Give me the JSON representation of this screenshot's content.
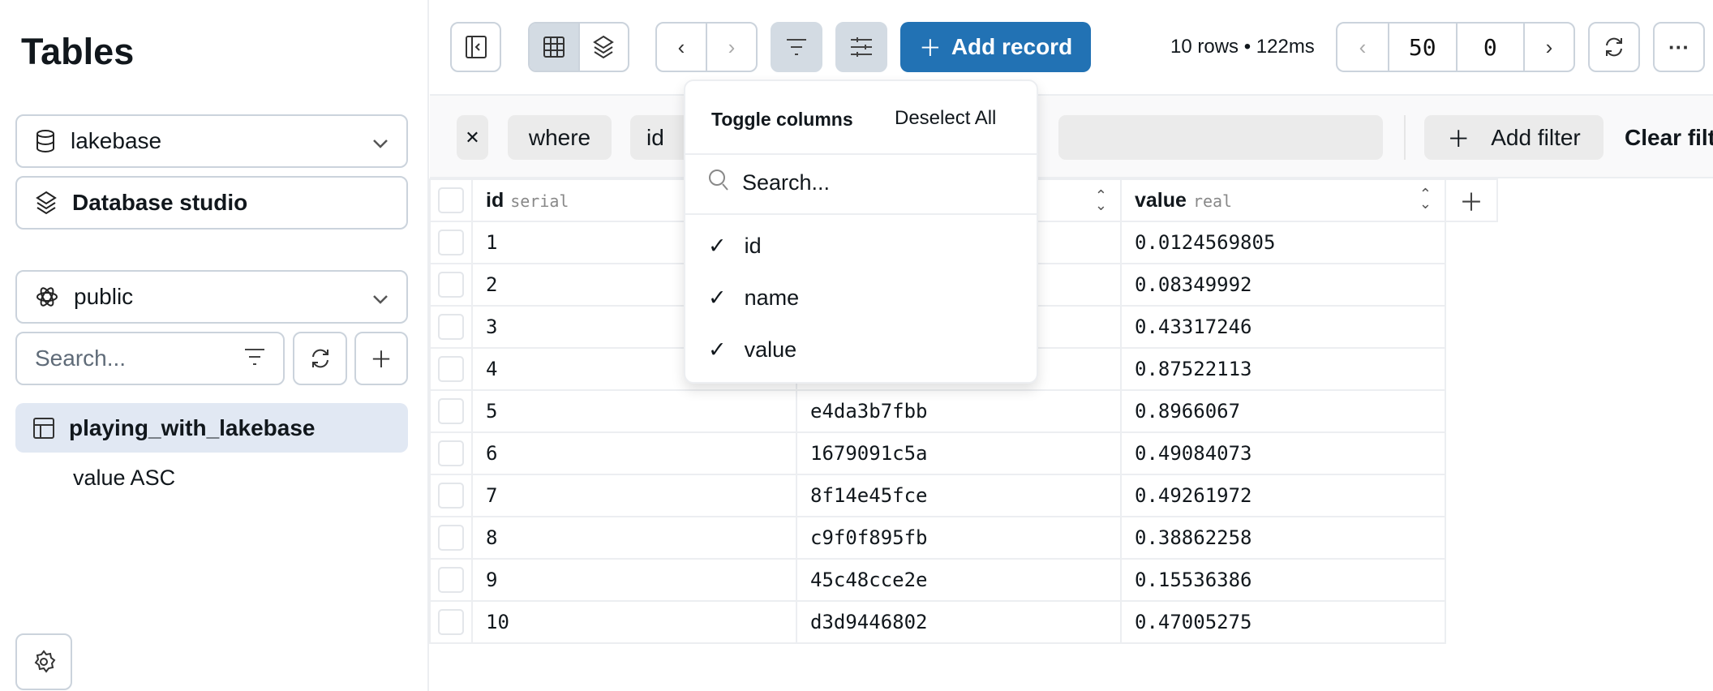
{
  "sidebar": {
    "title": "Tables",
    "database": "lakebase",
    "studio": "Database studio",
    "schema": "public",
    "search_placeholder": "Search...",
    "tables": [
      {
        "label": "playing_with_lakebase",
        "sub": "value ASC"
      }
    ]
  },
  "toolbar": {
    "add_record": "Add record",
    "status": "10 rows • 122ms",
    "limit": "50",
    "offset": "0",
    "accent": "#2272b4"
  },
  "filter": {
    "where": "where",
    "column": "id",
    "add_filter": "Add filter",
    "clear": "Clear filt"
  },
  "dropdown": {
    "title": "Toggle columns",
    "deselect": "Deselect All",
    "search_placeholder": "Search...",
    "items": [
      {
        "label": "id",
        "checked": true
      },
      {
        "label": "name",
        "checked": true
      },
      {
        "label": "value",
        "checked": true
      }
    ]
  },
  "table": {
    "columns": [
      {
        "name": "id",
        "type": "serial"
      },
      {
        "name": "",
        "type": ""
      },
      {
        "name": "value",
        "type": "real"
      }
    ],
    "rows": [
      [
        "1",
        "",
        "0.0124569805"
      ],
      [
        "2",
        "",
        "0.08349992"
      ],
      [
        "3",
        "",
        "0.43317246"
      ],
      [
        "4",
        "",
        "0.87522113"
      ],
      [
        "5",
        "e4da3b7fbb",
        "0.8966067"
      ],
      [
        "6",
        "1679091c5a",
        "0.49084073"
      ],
      [
        "7",
        "8f14e45fce",
        "0.49261972"
      ],
      [
        "8",
        "c9f0f895fb",
        "0.38862258"
      ],
      [
        "9",
        "45c48cce2e",
        "0.15536386"
      ],
      [
        "10",
        "d3d9446802",
        "0.47005275"
      ]
    ]
  }
}
